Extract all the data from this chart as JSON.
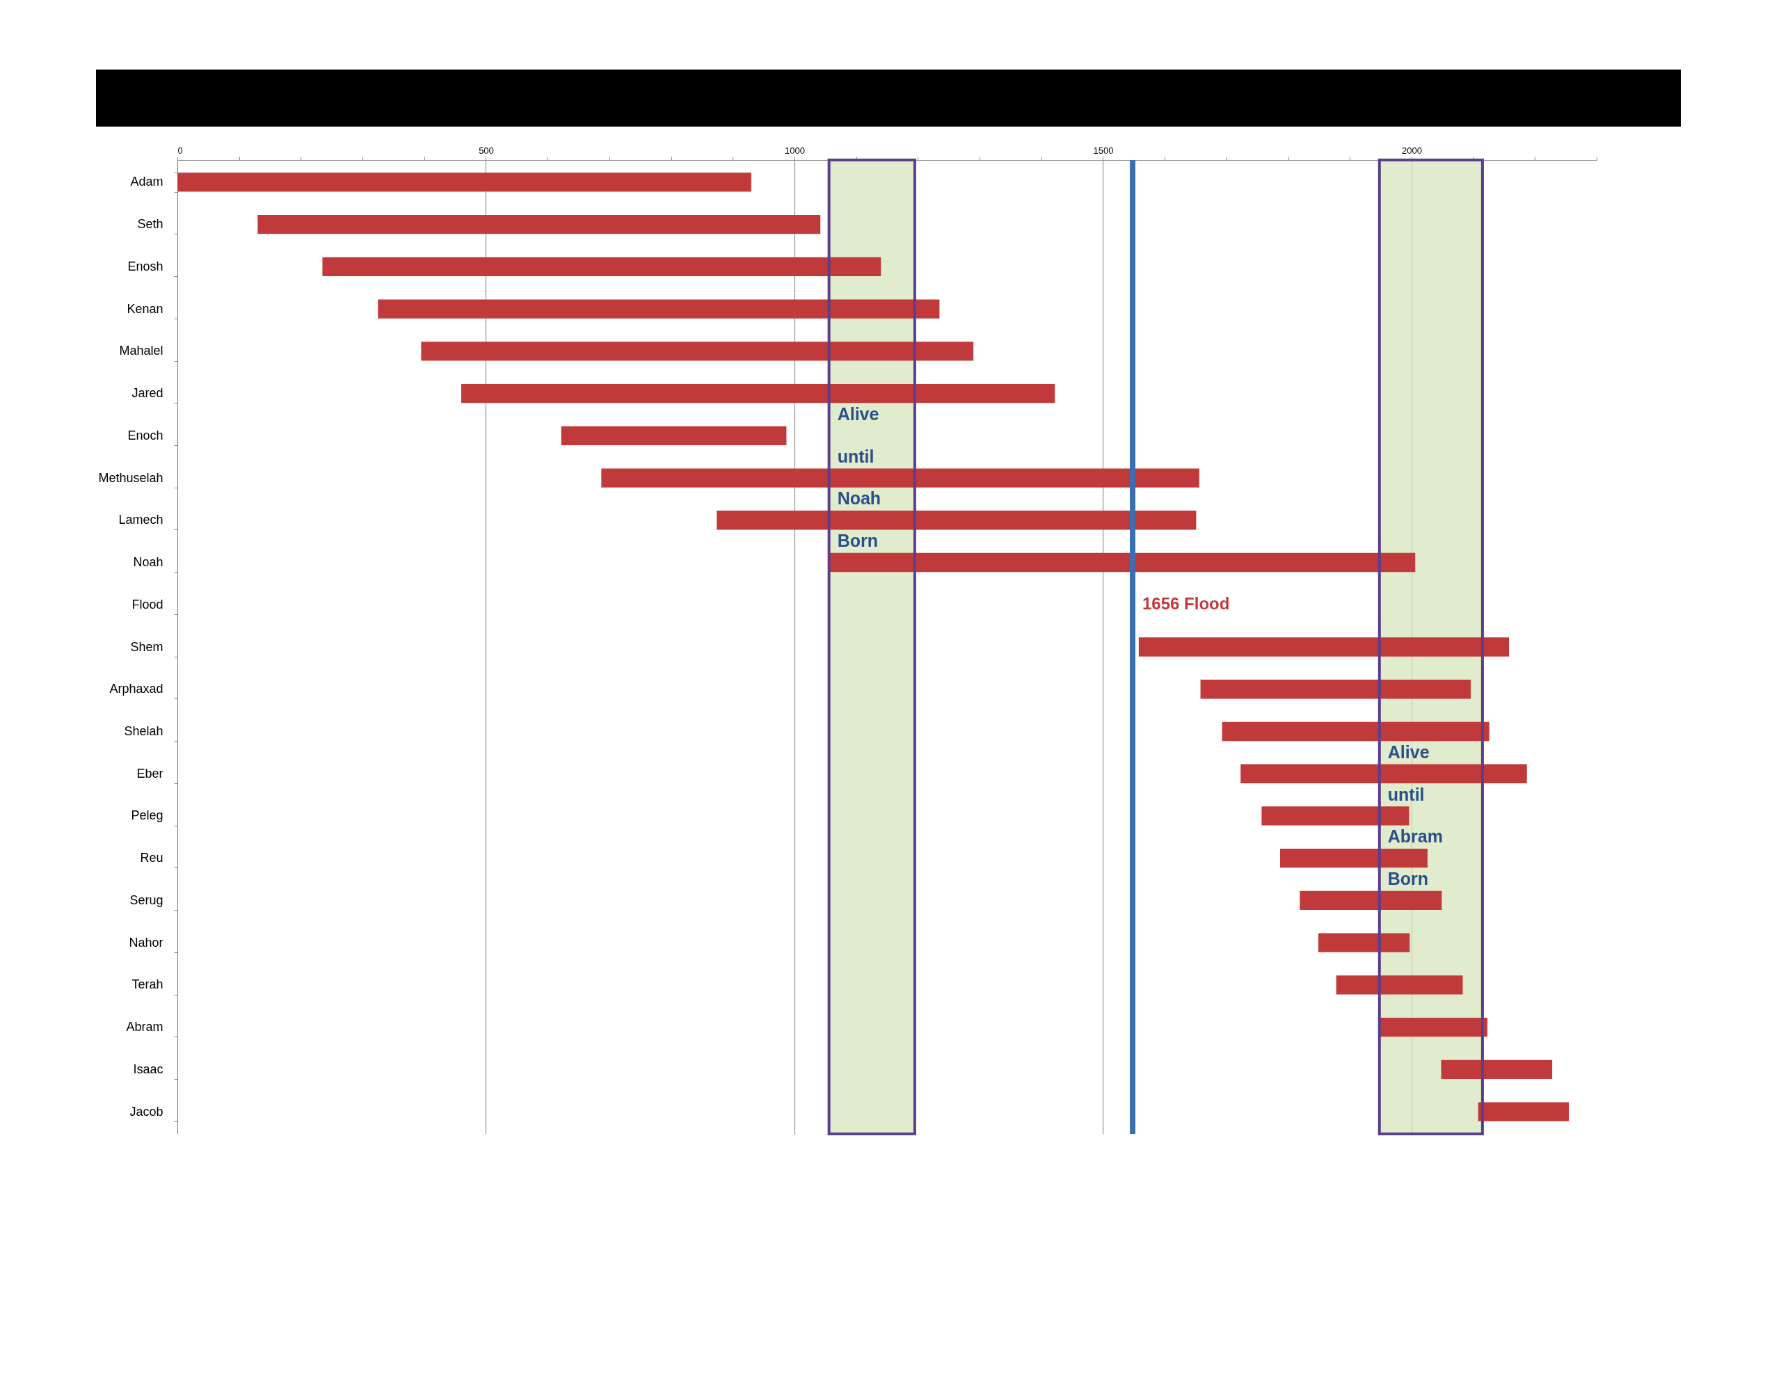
{
  "chart_data": {
    "type": "bar",
    "orientation": "horizontal",
    "categories": [
      "Adam",
      "Seth",
      "Enosh",
      "Kenan",
      "Mahalel",
      "Jared",
      "Enoch",
      "Methuselah",
      "Lamech",
      "Noah",
      "Flood",
      "Shem",
      "Arphaxad",
      "Shelah",
      "Eber",
      "Peleg",
      "Reu",
      "Serug",
      "Nahor",
      "Terah",
      "Abram",
      "Isaac",
      "Jacob"
    ],
    "base": [
      0,
      130,
      235,
      325,
      395,
      460,
      622,
      687,
      874,
      1056,
      null,
      1558,
      1658,
      1693,
      1723,
      1757,
      1787,
      1819,
      1849,
      1878,
      1948,
      2048,
      2108
    ],
    "values": [
      930,
      912,
      905,
      910,
      895,
      962,
      365,
      969,
      777,
      950,
      null,
      600,
      438,
      433,
      464,
      239,
      239,
      230,
      148,
      205,
      175,
      180,
      147
    ],
    "color": "#c0393b",
    "xlim": [
      0,
      2300
    ],
    "xticks": [
      0,
      {
        "value": 100,
        "label": null
      },
      {
        "value": 200,
        "label": null
      },
      {
        "value": 300,
        "label": null
      },
      {
        "value": 400,
        "label": null
      },
      500,
      {
        "value": 600,
        "label": null
      },
      {
        "value": 700,
        "label": null
      },
      {
        "value": 800,
        "label": null
      },
      {
        "value": 900,
        "label": null
      },
      1000,
      {
        "value": 1100,
        "label": null
      },
      {
        "value": 1200,
        "label": null
      },
      {
        "value": 1300,
        "label": null
      },
      {
        "value": 1400,
        "label": null
      },
      1500,
      {
        "value": 1600,
        "label": null
      },
      {
        "value": 1700,
        "label": null
      },
      {
        "value": 1800,
        "label": null
      },
      {
        "value": 1900,
        "label": null
      },
      2000,
      {
        "value": 2100,
        "label": null
      },
      {
        "value": 2200,
        "label": null
      },
      {
        "value": 2300,
        "label": null
      }
    ],
    "grid": "x",
    "ref_lines": [
      {
        "axis": "x",
        "value": 1548,
        "color": "#3b6fb0"
      }
    ],
    "bands": [
      {
        "axis": "x",
        "from": 1056,
        "to": 1195,
        "label": "Alive until Noah Born",
        "color": "#d7e4bc"
      },
      {
        "axis": "x",
        "from": 1948,
        "to": 2115,
        "label": "Alive until Abram Born",
        "color": "#d7e4bc"
      }
    ],
    "annotations": [
      {
        "text": "1656   Flood",
        "x": 1548,
        "y": "Flood"
      }
    ]
  }
}
